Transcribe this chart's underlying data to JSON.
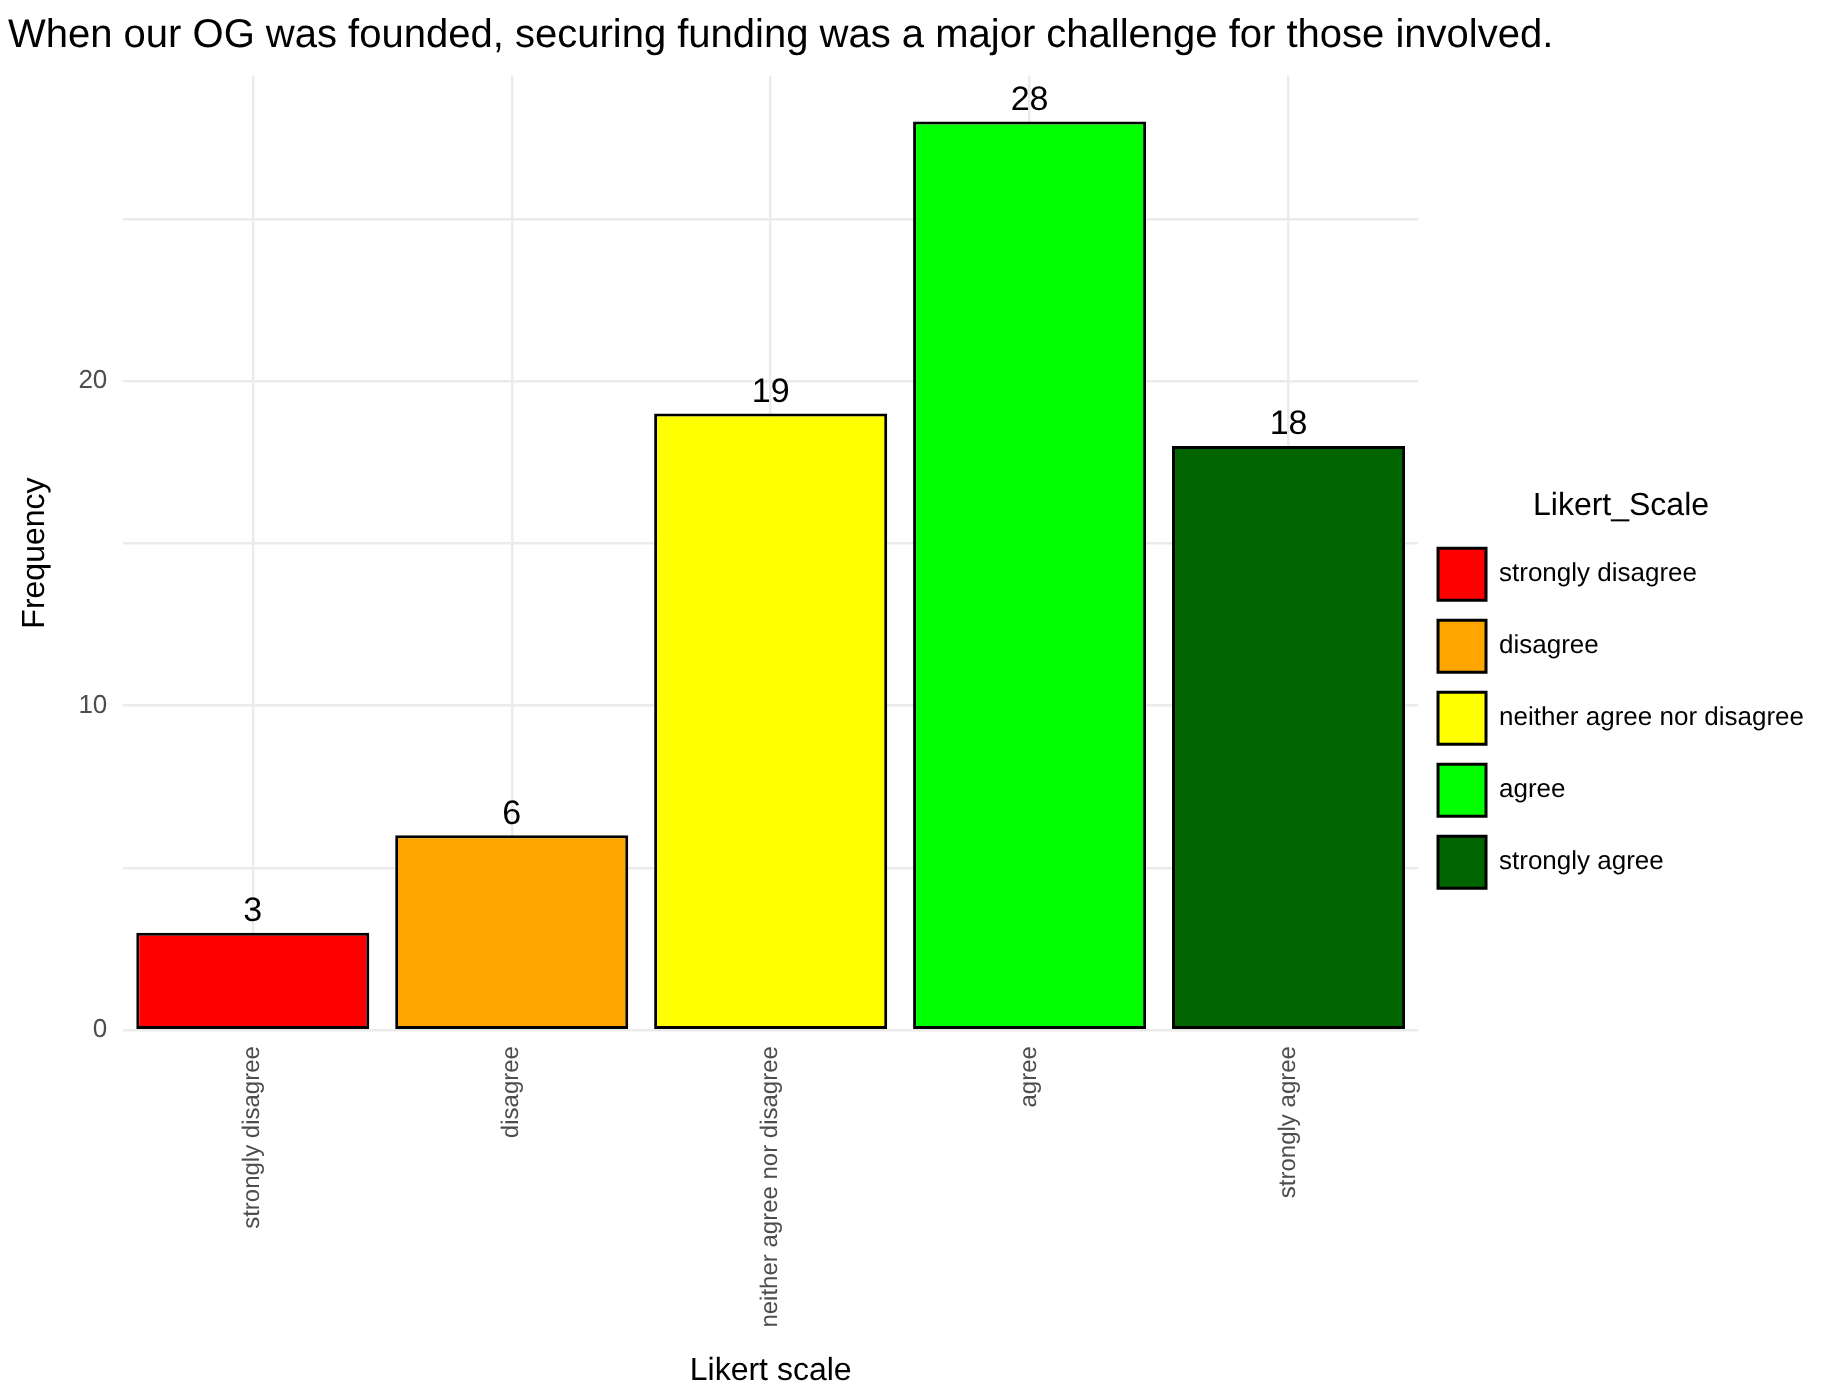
{
  "chart_data": {
    "type": "bar",
    "title": "When our OG was founded, securing funding was a major challenge for those involved.",
    "xlabel": "Likert scale",
    "ylabel": "Frequency",
    "legend_title": "Likert_Scale",
    "categories": [
      "strongly disagree",
      "disagree",
      "neither agree nor disagree",
      "agree",
      "strongly agree"
    ],
    "series": [
      {
        "name": "strongly disagree",
        "color": "#ff0000",
        "values": [
          3,
          null,
          null,
          null,
          null
        ]
      },
      {
        "name": "disagree",
        "color": "#ffa500",
        "values": [
          null,
          6,
          null,
          null,
          null
        ]
      },
      {
        "name": "neither agree nor disagree",
        "color": "#ffff00",
        "values": [
          null,
          null,
          19,
          null,
          null
        ]
      },
      {
        "name": "agree",
        "color": "#00ff00",
        "values": [
          null,
          null,
          null,
          28,
          null
        ]
      },
      {
        "name": "strongly agree",
        "color": "#006400",
        "values": [
          null,
          null,
          null,
          null,
          18
        ]
      }
    ],
    "ylim": [
      0,
      29.4
    ],
    "yticks": [
      0,
      {
        "value": 5,
        "label": null
      },
      10,
      {
        "value": 15,
        "label": null
      },
      20,
      {
        "value": 25,
        "label": null
      }
    ],
    "grid": true,
    "legend": "right",
    "data_labels": true
  }
}
